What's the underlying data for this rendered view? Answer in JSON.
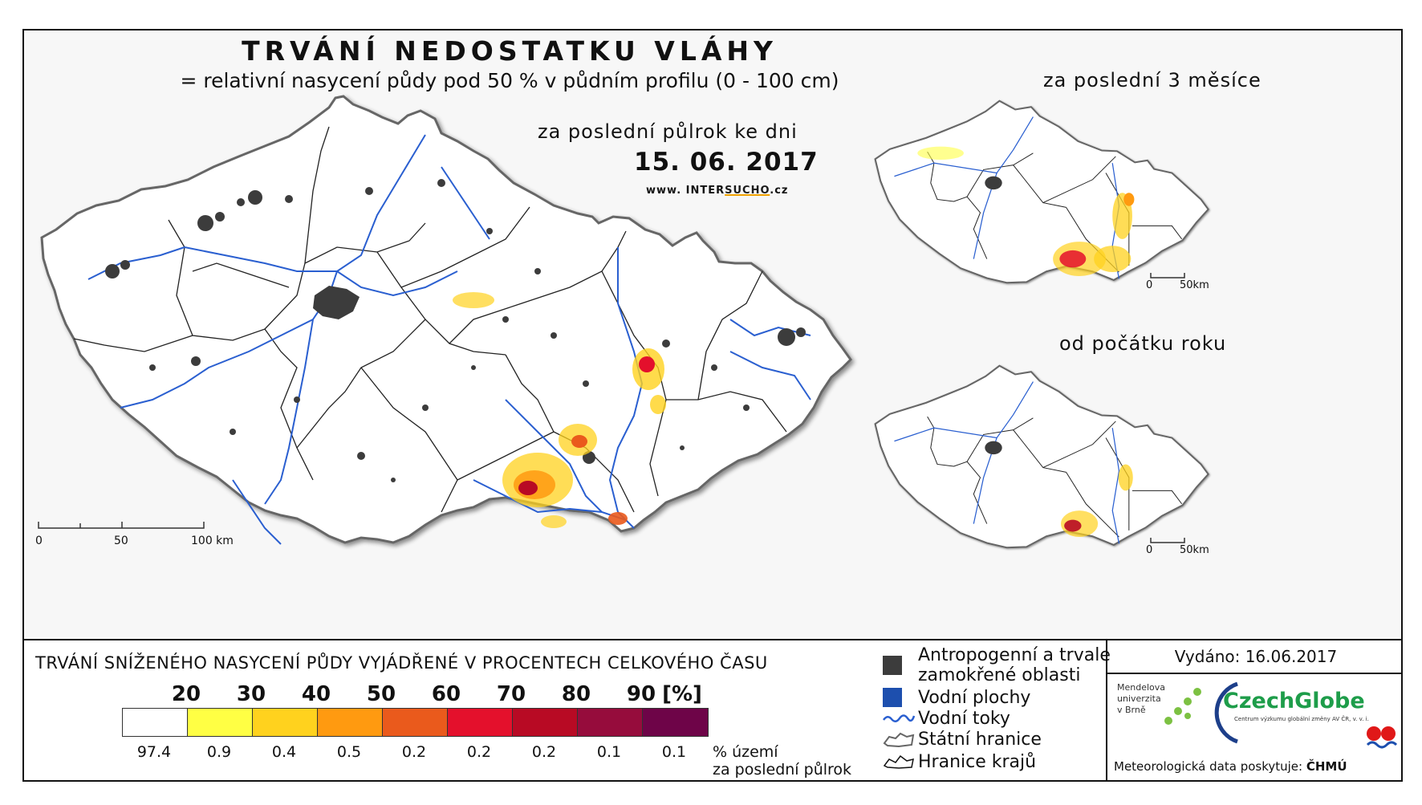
{
  "header": {
    "title": "TRVÁNÍ NEDOSTATKU VLÁHY",
    "subtitle": "= relativní nasycení půdy pod 50 % v půdním profilu (0 - 100 cm)",
    "period": "za poslední půlrok ke dni",
    "date": "15. 06. 2017",
    "website_prefix": "www. INTER",
    "website_brand": "SUCHO",
    "website_suffix": ".cz"
  },
  "main_map": {
    "scale_ticks": [
      "0",
      "50",
      "100 km"
    ]
  },
  "inset_maps": [
    {
      "label": "za poslední 3 měsíce",
      "scale_ticks": [
        "0",
        "50km"
      ]
    },
    {
      "label": "od počátku roku",
      "scale_ticks": [
        "0",
        "50km"
      ]
    }
  ],
  "legend": {
    "title": "TRVÁNÍ SNÍŽENÉHO NASYCENÍ PŮDY VYJÁDŘENÉ V PROCENTECH CELKOVÉHO ČASU",
    "thresholds": [
      "20",
      "30",
      "40",
      "50",
      "60",
      "70",
      "80",
      "90",
      "[%]"
    ],
    "colors": [
      "#ffffff",
      "#ffff44",
      "#ffd21e",
      "#ff9a10",
      "#ea5a1c",
      "#e4102c",
      "#b80a24",
      "#960c3c",
      "#6e0448"
    ],
    "percents": [
      "97.4",
      "0.9",
      "0.4",
      "0.5",
      "0.2",
      "0.2",
      "0.2",
      "0.1",
      "0.1"
    ],
    "percent_note_line1": "% území",
    "percent_note_line2": "za poslední půlrok"
  },
  "map_key": {
    "anthropogenic_line1": "Antropogenní a trvale",
    "anthropogenic_line2": "zamokřené oblasti",
    "water_bodies": "Vodní plochy",
    "rivers": "Vodní toky",
    "state_border": "Státní hranice",
    "region_border": "Hranice krajů",
    "colors": {
      "anthropogenic": "#3c3c3c",
      "water": "#1d4fae",
      "river": "#2a5fd0"
    }
  },
  "publisher": {
    "issued": "Vydáno: 16.06.2017",
    "mendel_line1": "Mendelova",
    "mendel_line2": "univerzita",
    "mendel_line3": "v Brně",
    "czechglobe": "CzechGlobe",
    "czechglobe_sub": "Centrum výzkumu globální změny AV ČR, v. v. i.",
    "meteo_text": "Meteorologická data poskytuje:",
    "chmu": "ČHMÚ"
  }
}
